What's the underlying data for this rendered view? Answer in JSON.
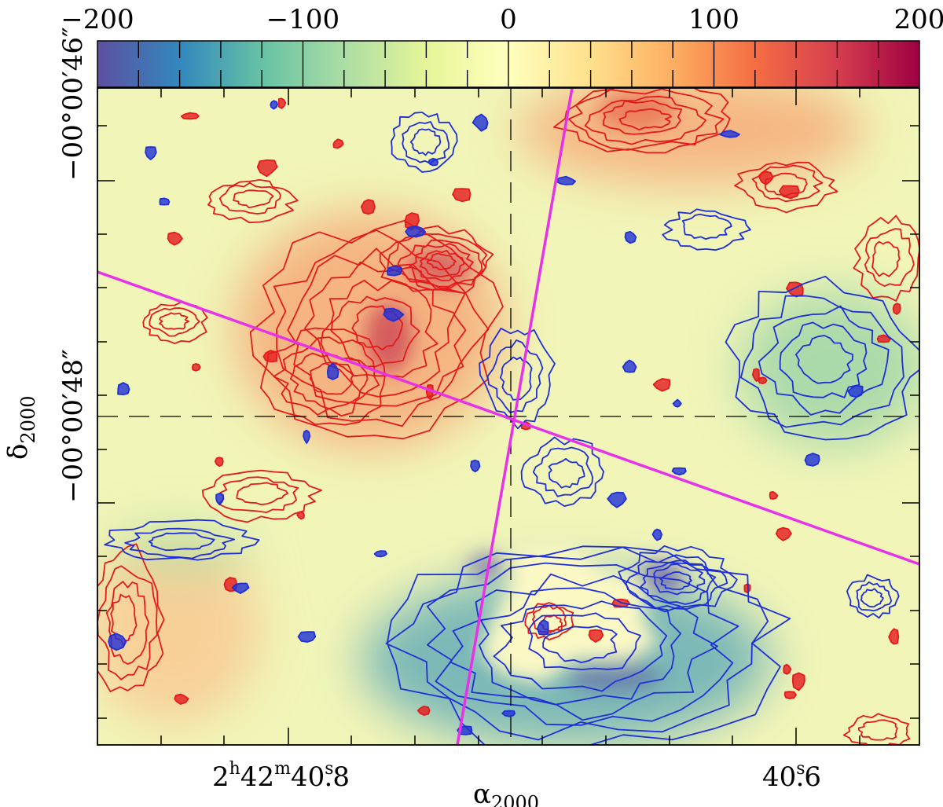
{
  "chart_data": {
    "type": "heatmap",
    "title": "",
    "colorbar": {
      "min": -200,
      "max": 200,
      "tick_labels": [
        "−200",
        "−100",
        "0",
        "100",
        "200"
      ],
      "tick_values": [
        -200,
        -100,
        0,
        100,
        200
      ],
      "colormap": [
        "#5e4fa2",
        "#3288bd",
        "#66c2a5",
        "#abdda4",
        "#e6f598",
        "#ffffbf",
        "#fee08b",
        "#fdae61",
        "#f46d43",
        "#d53e4f",
        "#9e0142"
      ]
    },
    "x_axis": {
      "label": "α",
      "label_sub": "2000",
      "tick_labels": [
        {
          "value": "40.8",
          "text_parts": [
            "2",
            "h",
            "42",
            "m",
            "40",
            "s",
            ".8"
          ]
        },
        {
          "value": "40.6",
          "text_parts": [
            "40",
            "s",
            ".6"
          ]
        }
      ]
    },
    "y_axis": {
      "label": "δ",
      "label_sub": "2000",
      "tick_labels": [
        "−00°00′46″",
        "−00°00′48″"
      ]
    },
    "contours": {
      "positive_color": "#e41a1c",
      "negative_color": "#1f2fd6"
    },
    "overlay_lines": {
      "color": "#e832e8"
    },
    "grid": false,
    "legend": "none"
  }
}
